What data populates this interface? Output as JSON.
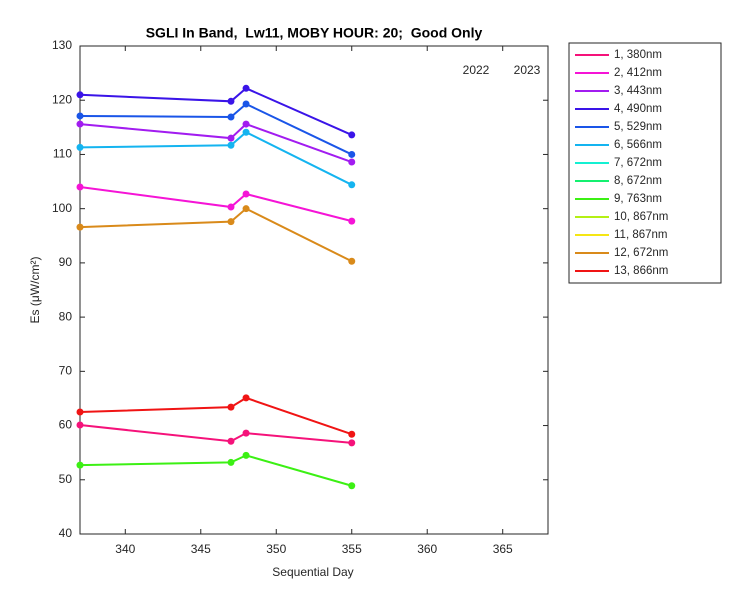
{
  "chart_data": {
    "type": "line",
    "title": "SGLI In Band,  Lw11, MOBY HOUR: 20;  Good Only",
    "x_label": "Sequential Day",
    "y_label": "Es (μW/cm²)",
    "annotations": [
      "2022",
      "2023"
    ],
    "x": [
      337,
      347,
      348,
      355
    ],
    "xlim": [
      337,
      368
    ],
    "xticks": [
      340,
      345,
      350,
      355,
      360,
      365
    ],
    "ylim": [
      40,
      130
    ],
    "yticks": [
      40,
      50,
      60,
      70,
      80,
      90,
      100,
      110,
      120,
      130
    ],
    "grid": false,
    "legend": "outside-right",
    "series": [
      {
        "name": "1, 380nm",
        "color": "#f5127a",
        "values": [
          60.1,
          57.1,
          58.6,
          56.8
        ]
      },
      {
        "name": "2, 412nm",
        "color": "#f514d6",
        "values": [
          104,
          100.3,
          102.7,
          97.7
        ]
      },
      {
        "name": "3, 443nm",
        "color": "#a21cf0",
        "values": [
          115.6,
          113,
          115.6,
          108.6
        ]
      },
      {
        "name": "4, 490nm",
        "color": "#3a14e8",
        "values": [
          121,
          119.8,
          122.2,
          113.6
        ]
      },
      {
        "name": "5, 529nm",
        "color": "#1a55e8",
        "values": [
          117.1,
          116.9,
          119.3,
          110
        ]
      },
      {
        "name": "6, 566nm",
        "color": "#14b4f0",
        "values": [
          111.3,
          111.7,
          114.1,
          104.4
        ]
      },
      {
        "name": "7, 672nm",
        "color": "#14f0d2",
        "values": [
          null,
          null,
          null,
          null
        ]
      },
      {
        "name": "8, 672nm",
        "color": "#14f070",
        "values": [
          null,
          null,
          null,
          null
        ]
      },
      {
        "name": "9, 763nm",
        "color": "#3cf014",
        "values": [
          52.7,
          53.2,
          54.5,
          48.9
        ]
      },
      {
        "name": "10, 867nm",
        "color": "#b4f014",
        "values": [
          null,
          null,
          null,
          null
        ]
      },
      {
        "name": "11, 867nm",
        "color": "#f5e614",
        "values": [
          null,
          null,
          null,
          null
        ]
      },
      {
        "name": "12, 672nm",
        "color": "#d98a1a",
        "values": [
          96.6,
          97.6,
          100,
          90.3
        ]
      },
      {
        "name": "13, 866nm",
        "color": "#f01414",
        "values": [
          62.5,
          63.4,
          65.1,
          58.4
        ]
      }
    ]
  }
}
